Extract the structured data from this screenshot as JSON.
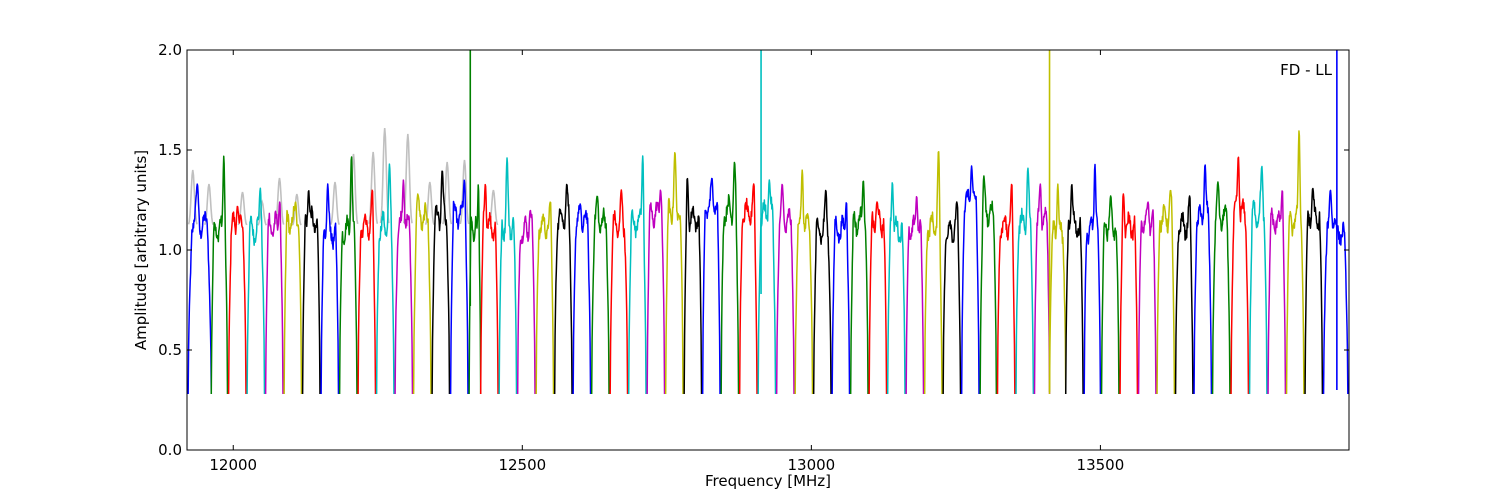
{
  "chart_data": {
    "type": "line",
    "title": "",
    "annotation": "FD - LL",
    "xlabel": "Frequency [MHz]",
    "ylabel": "Amplitude [arbitrary units]",
    "xlim": [
      11920,
      13930
    ],
    "ylim": [
      0.0,
      2.0
    ],
    "xticks": [
      12000,
      12500,
      13000,
      13500
    ],
    "yticks": [
      0.0,
      0.5,
      1.0,
      1.5,
      2.0
    ],
    "xtick_labels": [
      "12000",
      "12500",
      "13000",
      "13500"
    ],
    "ytick_labels": [
      "0.0",
      "0.5",
      "1.0",
      "1.5",
      "2.0"
    ],
    "grid": false,
    "legend": "none",
    "channel_width_mhz": 32,
    "colors": [
      "#0000ff",
      "#008000",
      "#ff0000",
      "#00bfbf",
      "#bf00bf",
      "#bfbf00",
      "#000000"
    ],
    "background_trace_color": "#c0c0c0",
    "series": [
      {
        "start": 11922,
        "end": 11962,
        "color": "#0000ff",
        "peak": 1.33,
        "level": 1.12
      },
      {
        "start": 11962,
        "end": 11990,
        "color": "#008000",
        "peak": 1.47,
        "level": 1.1
      },
      {
        "start": 11992,
        "end": 12022,
        "color": "#ff0000",
        "peak": 1.22,
        "level": 1.12
      },
      {
        "start": 12024,
        "end": 12054,
        "color": "#00bfbf",
        "peak": 1.31,
        "level": 1.1
      },
      {
        "start": 12056,
        "end": 12086,
        "color": "#bf00bf",
        "peak": 1.24,
        "level": 1.12
      },
      {
        "start": 12088,
        "end": 12118,
        "color": "#bfbf00",
        "peak": 1.24,
        "level": 1.14
      },
      {
        "start": 12120,
        "end": 12150,
        "color": "#000000",
        "peak": 1.3,
        "level": 1.14
      },
      {
        "start": 12152,
        "end": 12182,
        "color": "#0000ff",
        "peak": 1.33,
        "level": 1.08
      },
      {
        "start": 12184,
        "end": 12214,
        "color": "#008000",
        "peak": 1.47,
        "level": 1.1
      },
      {
        "start": 12216,
        "end": 12246,
        "color": "#ff0000",
        "peak": 1.3,
        "level": 1.12
      },
      {
        "start": 12248,
        "end": 12278,
        "color": "#00bfbf",
        "peak": 1.43,
        "level": 1.12
      },
      {
        "start": 12280,
        "end": 12310,
        "color": "#bf00bf",
        "peak": 1.35,
        "level": 1.12
      },
      {
        "start": 12312,
        "end": 12342,
        "color": "#bfbf00",
        "peak": 1.28,
        "level": 1.16
      },
      {
        "start": 12344,
        "end": 12374,
        "color": "#000000",
        "peak": 1.4,
        "level": 1.16
      },
      {
        "start": 12376,
        "end": 12406,
        "color": "#0000ff",
        "peak": 1.35,
        "level": 1.18
      },
      {
        "start": 12408,
        "end": 12428,
        "color": "#008000",
        "peak": 1.33,
        "level": 1.1
      },
      {
        "start": 12428,
        "end": 12458,
        "color": "#ff0000",
        "peak": 1.33,
        "level": 1.12
      },
      {
        "start": 12460,
        "end": 12490,
        "color": "#00bfbf",
        "peak": 1.46,
        "level": 1.12
      },
      {
        "start": 12492,
        "end": 12522,
        "color": "#bf00bf",
        "peak": 1.2,
        "level": 1.1
      },
      {
        "start": 12524,
        "end": 12554,
        "color": "#bfbf00",
        "peak": 1.24,
        "level": 1.12
      },
      {
        "start": 12556,
        "end": 12586,
        "color": "#000000",
        "peak": 1.33,
        "level": 1.16
      },
      {
        "start": 12588,
        "end": 12618,
        "color": "#0000ff",
        "peak": 1.23,
        "level": 1.14
      },
      {
        "start": 12620,
        "end": 12650,
        "color": "#008000",
        "peak": 1.27,
        "level": 1.14
      },
      {
        "start": 12652,
        "end": 12682,
        "color": "#ff0000",
        "peak": 1.3,
        "level": 1.12
      },
      {
        "start": 12684,
        "end": 12714,
        "color": "#00bfbf",
        "peak": 1.47,
        "level": 1.14
      },
      {
        "start": 12716,
        "end": 12746,
        "color": "#bf00bf",
        "peak": 1.3,
        "level": 1.18
      },
      {
        "start": 12748,
        "end": 12778,
        "color": "#bfbf00",
        "peak": 1.49,
        "level": 1.2
      },
      {
        "start": 12780,
        "end": 12810,
        "color": "#000000",
        "peak": 1.36,
        "level": 1.16
      },
      {
        "start": 12812,
        "end": 12842,
        "color": "#0000ff",
        "peak": 1.36,
        "level": 1.22
      },
      {
        "start": 12844,
        "end": 12874,
        "color": "#008000",
        "peak": 1.44,
        "level": 1.2
      },
      {
        "start": 12876,
        "end": 12906,
        "color": "#ff0000",
        "peak": 1.33,
        "level": 1.18
      },
      {
        "start": 12908,
        "end": 12938,
        "color": "#00bfbf",
        "peak": 1.35,
        "level": 1.18
      },
      {
        "start": 12940,
        "end": 12970,
        "color": "#bf00bf",
        "peak": 1.33,
        "level": 1.14
      },
      {
        "start": 12972,
        "end": 13002,
        "color": "#bfbf00",
        "peak": 1.4,
        "level": 1.12
      },
      {
        "start": 13004,
        "end": 13034,
        "color": "#000000",
        "peak": 1.3,
        "level": 1.1
      },
      {
        "start": 13036,
        "end": 13066,
        "color": "#0000ff",
        "peak": 1.24,
        "level": 1.1
      },
      {
        "start": 13068,
        "end": 13098,
        "color": "#008000",
        "peak": 1.35,
        "level": 1.14
      },
      {
        "start": 13100,
        "end": 13130,
        "color": "#ff0000",
        "peak": 1.24,
        "level": 1.14
      },
      {
        "start": 13132,
        "end": 13162,
        "color": "#00bfbf",
        "peak": 1.34,
        "level": 1.1
      },
      {
        "start": 13164,
        "end": 13194,
        "color": "#bf00bf",
        "peak": 1.27,
        "level": 1.1
      },
      {
        "start": 13196,
        "end": 13226,
        "color": "#bfbf00",
        "peak": 1.5,
        "level": 1.12
      },
      {
        "start": 13228,
        "end": 13258,
        "color": "#000000",
        "peak": 1.24,
        "level": 1.1
      },
      {
        "start": 13260,
        "end": 13290,
        "color": "#0000ff",
        "peak": 1.42,
        "level": 1.24
      },
      {
        "start": 13292,
        "end": 13320,
        "color": "#008000",
        "peak": 1.37,
        "level": 1.18
      },
      {
        "start": 13322,
        "end": 13352,
        "color": "#ff0000",
        "peak": 1.33,
        "level": 1.12
      },
      {
        "start": 13354,
        "end": 13384,
        "color": "#00bfbf",
        "peak": 1.41,
        "level": 1.14
      },
      {
        "start": 13386,
        "end": 13412,
        "color": "#bf00bf",
        "peak": 1.33,
        "level": 1.16
      },
      {
        "start": 13412,
        "end": 13440,
        "color": "#bfbf00",
        "peak": 1.33,
        "level": 1.08
      },
      {
        "start": 13440,
        "end": 13470,
        "color": "#000000",
        "peak": 1.33,
        "level": 1.12
      },
      {
        "start": 13472,
        "end": 13500,
        "color": "#0000ff",
        "peak": 1.43,
        "level": 1.1
      },
      {
        "start": 13502,
        "end": 13532,
        "color": "#008000",
        "peak": 1.27,
        "level": 1.12
      },
      {
        "start": 13534,
        "end": 13564,
        "color": "#ff0000",
        "peak": 1.28,
        "level": 1.12
      },
      {
        "start": 13566,
        "end": 13596,
        "color": "#bf00bf",
        "peak": 1.24,
        "level": 1.14
      },
      {
        "start": 13598,
        "end": 13628,
        "color": "#bfbf00",
        "peak": 1.3,
        "level": 1.16
      },
      {
        "start": 13630,
        "end": 13660,
        "color": "#000000",
        "peak": 1.27,
        "level": 1.12
      },
      {
        "start": 13662,
        "end": 13692,
        "color": "#0000ff",
        "peak": 1.43,
        "level": 1.16
      },
      {
        "start": 13694,
        "end": 13724,
        "color": "#008000",
        "peak": 1.34,
        "level": 1.16
      },
      {
        "start": 13726,
        "end": 13756,
        "color": "#ff0000",
        "peak": 1.47,
        "level": 1.18
      },
      {
        "start": 13758,
        "end": 13788,
        "color": "#00bfbf",
        "peak": 1.42,
        "level": 1.18
      },
      {
        "start": 13790,
        "end": 13820,
        "color": "#bf00bf",
        "peak": 1.3,
        "level": 1.14
      },
      {
        "start": 13822,
        "end": 13852,
        "color": "#bfbf00",
        "peak": 1.6,
        "level": 1.14
      },
      {
        "start": 13854,
        "end": 13884,
        "color": "#000000",
        "peak": 1.31,
        "level": 1.16
      },
      {
        "start": 13886,
        "end": 13928,
        "color": "#0000ff",
        "peak": 1.3,
        "level": 1.1
      }
    ],
    "background_peaks": [
      {
        "x": 11930,
        "y": 1.4
      },
      {
        "x": 11958,
        "y": 1.33
      },
      {
        "x": 12016,
        "y": 1.29
      },
      {
        "x": 12050,
        "y": 1.24
      },
      {
        "x": 12080,
        "y": 1.36
      },
      {
        "x": 12110,
        "y": 1.28
      },
      {
        "x": 12176,
        "y": 1.34
      },
      {
        "x": 12208,
        "y": 1.48
      },
      {
        "x": 12242,
        "y": 1.49
      },
      {
        "x": 12262,
        "y": 1.61
      },
      {
        "x": 12302,
        "y": 1.58
      },
      {
        "x": 12340,
        "y": 1.34
      },
      {
        "x": 12370,
        "y": 1.44
      },
      {
        "x": 12400,
        "y": 1.45
      },
      {
        "x": 12450,
        "y": 1.3
      }
    ],
    "spikes": [
      {
        "x": 12410,
        "color": "#008000",
        "min": 0.72,
        "max": 2.0
      },
      {
        "x": 12913,
        "color": "#00bfbf",
        "min": 0.78,
        "max": 2.0
      },
      {
        "x": 13412,
        "color": "#bfbf00",
        "min": 0.29,
        "max": 2.0
      },
      {
        "x": 13909,
        "color": "#0000ff",
        "min": 0.3,
        "max": 2.0
      }
    ]
  }
}
